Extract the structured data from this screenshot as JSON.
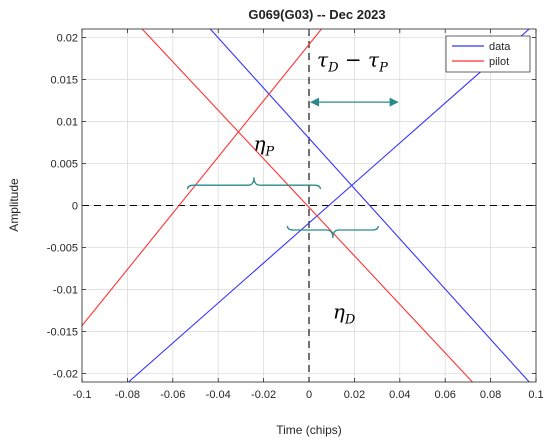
{
  "chart_data": {
    "type": "line",
    "title": "G069(G03) -- Dec 2023",
    "xlabel": "Time (chips)",
    "ylabel": "Amplitude",
    "xlim": [
      -0.1,
      0.1
    ],
    "ylim": [
      -0.021,
      0.021
    ],
    "xticks": [
      "-0.1",
      "-0.08",
      "-0.06",
      "-0.04",
      "-0.02",
      "0",
      "0.02",
      "0.04",
      "0.06",
      "0.08",
      "0.1"
    ],
    "yticks": [
      "-0.02",
      "-0.015",
      "-0.01",
      "-0.005",
      "0",
      "0.005",
      "0.01",
      "0.015",
      "0.02"
    ],
    "grid": true,
    "legend_position": "top-right",
    "series": [
      {
        "name": "data",
        "color": "#3333ff",
        "lines": [
          {
            "x": [
              -0.0795,
              0.097
            ],
            "y": [
              -0.021,
              0.021
            ]
          },
          {
            "x": [
              -0.0435,
              0.097
            ],
            "y": [
              0.021,
              -0.021
            ]
          }
        ]
      },
      {
        "name": "pilot",
        "color": "#ff3333",
        "lines": [
          {
            "x": [
              -0.1,
              0.0055
            ],
            "y": [
              -0.0143,
              0.021
            ]
          },
          {
            "x": [
              -0.0735,
              0.072
            ],
            "y": [
              0.021,
              -0.021
            ]
          }
        ]
      }
    ],
    "reference_lines": [
      {
        "orientation": "horizontal",
        "value": 0
      },
      {
        "orientation": "vertical",
        "value": 0
      }
    ],
    "annotations": [
      {
        "id": "tau",
        "main": "τ",
        "sub1": "D",
        "mid": " − τ",
        "sub2": "P",
        "x": 0.0,
        "y": 0.0175
      },
      {
        "id": "eta-p",
        "main": "η",
        "sub": "P",
        "x": -0.028,
        "y": 0.0075
      },
      {
        "id": "eta-d",
        "main": "η",
        "sub": "D",
        "x": 0.007,
        "y": -0.0125
      }
    ],
    "arrow": {
      "x1": 0.0,
      "x2": 0.04,
      "y": 0.0123,
      "color": "#2a8a8a"
    },
    "brackets": [
      {
        "id": "eta-p-brace",
        "x1": -0.0535,
        "x2": 0.005,
        "y": 0.0017,
        "orientation": "up",
        "color": "#2a8a8a"
      },
      {
        "id": "eta-d-brace",
        "x1": -0.0095,
        "x2": 0.0305,
        "y": -0.0022,
        "orientation": "down",
        "color": "#2a8a8a"
      }
    ]
  }
}
